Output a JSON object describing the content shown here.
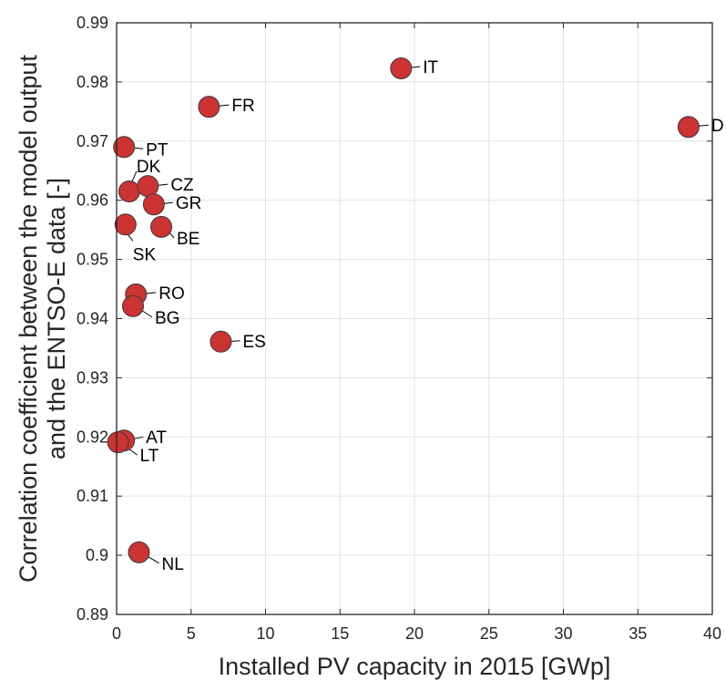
{
  "chart_data": {
    "type": "scatter",
    "title": "",
    "xlabel": "Installed PV capacity in 2015 [GWp]",
    "ylabel_lines": [
      "Correlation coefficient between the model output",
      "and the ENTSO-E data [-]"
    ],
    "xlim": [
      0,
      40
    ],
    "ylim": [
      0.89,
      0.99
    ],
    "xticks": [
      0,
      5,
      10,
      15,
      20,
      25,
      30,
      35,
      40
    ],
    "xtick_labels": [
      "0",
      "5",
      "10",
      "15",
      "20",
      "25",
      "30",
      "35",
      "40"
    ],
    "yticks": [
      0.89,
      0.9,
      0.91,
      0.92,
      0.93,
      0.94,
      0.95,
      0.96,
      0.97,
      0.98,
      0.99
    ],
    "ytick_labels": [
      "0.89",
      "0.9",
      "0.91",
      "0.92",
      "0.93",
      "0.94",
      "0.95",
      "0.96",
      "0.97",
      "0.98",
      "0.99"
    ],
    "grid": true,
    "marker_color": "#cc3333",
    "marker_edge_color": "#3a3a3a",
    "points": [
      {
        "label": "PT",
        "x": 0.5,
        "y": 0.969
      },
      {
        "label": "DK",
        "x": 0.85,
        "y": 0.9615
      },
      {
        "label": "CZ",
        "x": 2.1,
        "y": 0.9624
      },
      {
        "label": "GR",
        "x": 2.5,
        "y": 0.9593
      },
      {
        "label": "SK",
        "x": 0.6,
        "y": 0.9559
      },
      {
        "label": "BE",
        "x": 3.0,
        "y": 0.9555
      },
      {
        "label": "RO",
        "x": 1.3,
        "y": 0.9441
      },
      {
        "label": "BG",
        "x": 1.1,
        "y": 0.9421
      },
      {
        "label": "ES",
        "x": 7.0,
        "y": 0.9361
      },
      {
        "label": "AT",
        "x": 0.5,
        "y": 0.9194
      },
      {
        "label": "LT",
        "x": 0.1,
        "y": 0.9191
      },
      {
        "label": "NL",
        "x": 1.5,
        "y": 0.9005
      },
      {
        "label": "FR",
        "x": 6.2,
        "y": 0.9758
      },
      {
        "label": "IT",
        "x": 19.1,
        "y": 0.9823
      },
      {
        "label": "D",
        "x": 38.4,
        "y": 0.9724
      }
    ]
  }
}
